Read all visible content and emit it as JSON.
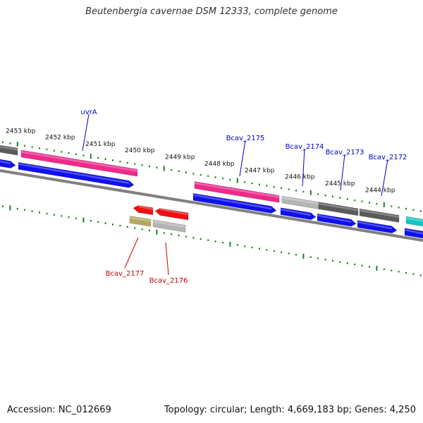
{
  "title": "Beutenbergia cavernae DSM 12333, complete genome",
  "footer": {
    "accession": "Accession: NC_012669",
    "topology": "Topology: circular; Length: 4,669,183 bp; Genes: 4,250"
  },
  "colors": {
    "backbone": "#808080",
    "tick": "#1e7d1e",
    "forward_label": "#0000cc",
    "reverse_label": "#cc0000",
    "cds": "#1010ee",
    "gene_magenta": "#ee2a8a",
    "gene_gray_light": "#b4b4b4",
    "gene_gray_dark": "#5a5a5a",
    "gene_cyan": "#14c4c4",
    "gene_red": "#ee1010",
    "gene_olive": "#b4a860"
  },
  "kbp_labels": [
    "2453 kbp",
    "2452 kbp",
    "2451 kbp",
    "2450 kbp",
    "2449 kbp",
    "2448 kbp",
    "2447 kbp",
    "2446 kbp",
    "2445 kbp",
    "2444 kbp"
  ],
  "forward_genes": [
    "uvrA",
    "Bcav_2175",
    "Bcav_2174",
    "Bcav_2173",
    "Bcav_2172"
  ],
  "reverse_genes": [
    "Bcav_2177",
    "Bcav_2176"
  ]
}
